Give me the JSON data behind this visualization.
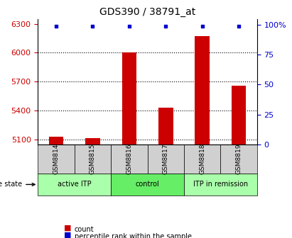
{
  "title": "GDS390 / 38791_at",
  "samples": [
    "GSM8814",
    "GSM8815",
    "GSM8816",
    "GSM8817",
    "GSM8818",
    "GSM8819"
  ],
  "counts": [
    5130,
    5115,
    6000,
    5430,
    6170,
    5660
  ],
  "percentiles": [
    99,
    99,
    99,
    99,
    99,
    99
  ],
  "ylim_left": [
    5050,
    6350
  ],
  "yticks_left": [
    5100,
    5400,
    5700,
    6000,
    6300
  ],
  "ylim_right": [
    0,
    105
  ],
  "yticks_right": [
    0,
    25,
    50,
    75,
    100
  ],
  "yticklabels_right": [
    "0",
    "25",
    "50",
    "75",
    "100%"
  ],
  "bar_color": "#cc0000",
  "dot_color": "#0000cc",
  "bar_width": 0.4,
  "groups": [
    {
      "label": "active ITP",
      "samples": [
        "GSM8814",
        "GSM8815"
      ],
      "color": "#aaffaa"
    },
    {
      "label": "control",
      "samples": [
        "GSM8816",
        "GSM8817"
      ],
      "color": "#66ee66"
    },
    {
      "label": "ITP in remission",
      "samples": [
        "GSM8818",
        "GSM8819"
      ],
      "color": "#aaffaa"
    }
  ],
  "disease_state_label": "disease state",
  "legend_count_label": "count",
  "legend_pct_label": "percentile rank within the sample",
  "grid_color": "black",
  "grid_linestyle": "dotted",
  "ax_tick_color_left": "#cc0000",
  "ax_tick_color_right": "#0000cc"
}
